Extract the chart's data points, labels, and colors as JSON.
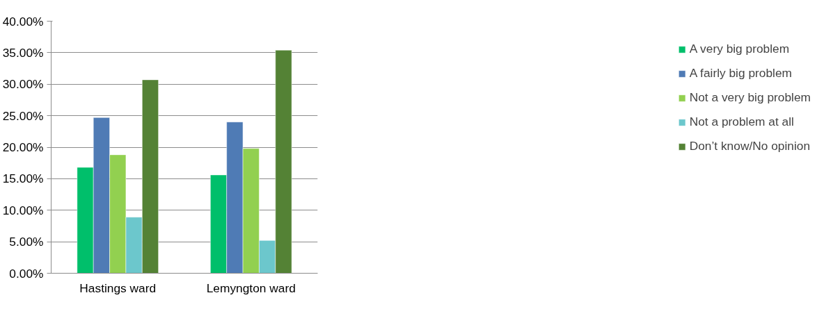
{
  "chart_data": {
    "type": "bar",
    "categories": [
      "Hastings ward",
      "Lemyngton ward"
    ],
    "series": [
      {
        "name": "A very big problem",
        "color": "#00bf6b",
        "values": [
          16.8,
          15.6
        ]
      },
      {
        "name": "A fairly big problem",
        "color": "#4f7bb5",
        "values": [
          24.7,
          24.0
        ]
      },
      {
        "name": "Not a very big problem",
        "color": "#92d050",
        "values": [
          18.8,
          19.8
        ]
      },
      {
        "name": "Not a problem at all",
        "color": "#6cc7cc",
        "values": [
          8.9,
          5.2
        ]
      },
      {
        "name": "Don’t know/No opinion",
        "color": "#548235",
        "values": [
          30.7,
          35.4
        ]
      }
    ],
    "ylim": [
      0,
      40
    ],
    "yticks": [
      {
        "value": 0,
        "label": "0.00%"
      },
      {
        "value": 5,
        "label": "5.00%"
      },
      {
        "value": 10,
        "label": "10.00%"
      },
      {
        "value": 15,
        "label": "15.00%"
      },
      {
        "value": 20,
        "label": "20.00%"
      },
      {
        "value": 25,
        "label": "25.00%"
      },
      {
        "value": 30,
        "label": "30.00%"
      },
      {
        "value": 35,
        "label": "35.00%"
      },
      {
        "value": 40,
        "label": "40.00%"
      }
    ],
    "grid": "y",
    "legend": "right"
  }
}
